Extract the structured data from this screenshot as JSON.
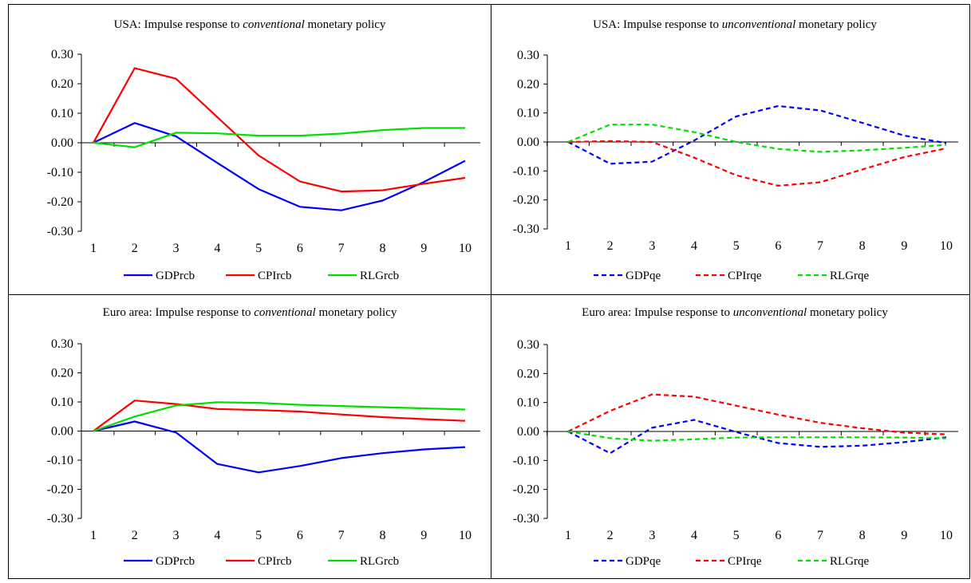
{
  "colors": {
    "GDP": "#0000ff",
    "CPI": "#ff0000",
    "RLG": "#00e000"
  },
  "chart_data": [
    {
      "type": "line",
      "title": {
        "prefix": "USA:  Impulse response to ",
        "emph": "conventional",
        "suffix": " monetary policy"
      },
      "x": [
        1,
        2,
        3,
        4,
        5,
        6,
        7,
        8,
        9,
        10
      ],
      "ylim": [
        -0.3,
        0.3
      ],
      "yticks": [
        "0.30",
        "0.20",
        "0.10",
        "0.00",
        "-0.10",
        "-0.20",
        "-0.30"
      ],
      "dashed": false,
      "series": [
        {
          "name": "GDPrcb",
          "color_key": "GDP",
          "values": [
            0.0,
            0.067,
            0.022,
            -0.068,
            -0.157,
            -0.217,
            -0.229,
            -0.196,
            -0.133,
            -0.061
          ]
        },
        {
          "name": "CPIrcb",
          "color_key": "CPI",
          "values": [
            0.0,
            0.253,
            0.217,
            0.087,
            -0.043,
            -0.131,
            -0.165,
            -0.161,
            -0.139,
            -0.119
          ]
        },
        {
          "name": "RLGrcb",
          "color_key": "RLG",
          "values": [
            0.0,
            -0.015,
            0.034,
            0.032,
            0.024,
            0.024,
            0.031,
            0.043,
            0.05,
            0.05
          ]
        }
      ]
    },
    {
      "type": "line",
      "title": {
        "prefix": "USA:  Impulse response to ",
        "emph": "unconventional",
        "suffix": " monetary policy"
      },
      "x": [
        1,
        2,
        3,
        4,
        5,
        6,
        7,
        8,
        9,
        10
      ],
      "ylim": [
        -0.3,
        0.3
      ],
      "yticks": [
        "0.30",
        "0.20",
        "0.10",
        "0.00",
        "-0.10",
        "-0.20",
        "-0.30"
      ],
      "dashed": true,
      "series": [
        {
          "name": "GDPqe",
          "color_key": "GDP",
          "values": [
            0.0,
            -0.075,
            -0.068,
            0.005,
            0.088,
            0.124,
            0.109,
            0.066,
            0.022,
            -0.004
          ]
        },
        {
          "name": "CPIrqe",
          "color_key": "CPI",
          "values": [
            0.0,
            0.003,
            0.0,
            -0.054,
            -0.115,
            -0.151,
            -0.139,
            -0.095,
            -0.052,
            -0.022
          ]
        },
        {
          "name": "RLGrqe",
          "color_key": "RLG",
          "values": [
            0.0,
            0.06,
            0.06,
            0.034,
            0.0,
            -0.024,
            -0.034,
            -0.029,
            -0.02,
            -0.01
          ]
        }
      ]
    },
    {
      "type": "line",
      "title": {
        "prefix": "Euro area:  Impulse response to ",
        "emph": "conventional",
        "suffix": " monetary policy"
      },
      "x": [
        1,
        2,
        3,
        4,
        5,
        6,
        7,
        8,
        9,
        10
      ],
      "ylim": [
        -0.3,
        0.3
      ],
      "yticks": [
        "0.30",
        "0.20",
        "0.10",
        "0.00",
        "-0.10",
        "-0.20",
        "-0.30"
      ],
      "dashed": false,
      "series": [
        {
          "name": "GDPrcb",
          "color_key": "GDP",
          "values": [
            0.0,
            0.033,
            -0.005,
            -0.113,
            -0.142,
            -0.12,
            -0.093,
            -0.076,
            -0.063,
            -0.055
          ]
        },
        {
          "name": "CPIrcb",
          "color_key": "CPI",
          "values": [
            0.0,
            0.105,
            0.093,
            0.076,
            0.072,
            0.067,
            0.057,
            0.048,
            0.041,
            0.035
          ]
        },
        {
          "name": "RLGrcb",
          "color_key": "RLG",
          "values": [
            0.0,
            0.05,
            0.088,
            0.099,
            0.097,
            0.09,
            0.086,
            0.082,
            0.078,
            0.074
          ]
        }
      ]
    },
    {
      "type": "line",
      "title": {
        "prefix": "Euro area:  Impulse response to ",
        "emph": "unconventional",
        "suffix": " monetary policy"
      },
      "x": [
        1,
        2,
        3,
        4,
        5,
        6,
        7,
        8,
        9,
        10
      ],
      "ylim": [
        -0.3,
        0.3
      ],
      "yticks": [
        "0.30",
        "0.20",
        "0.10",
        "0.00",
        "-0.10",
        "-0.20",
        "-0.30"
      ],
      "dashed": true,
      "series": [
        {
          "name": "GDPqe",
          "color_key": "GDP",
          "values": [
            0.0,
            -0.075,
            0.013,
            0.04,
            -0.002,
            -0.04,
            -0.053,
            -0.049,
            -0.037,
            -0.02
          ]
        },
        {
          "name": "CPIrqe",
          "color_key": "CPI",
          "values": [
            0.0,
            0.071,
            0.128,
            0.12,
            0.089,
            0.058,
            0.03,
            0.011,
            -0.004,
            -0.01
          ]
        },
        {
          "name": "RLGrqe",
          "color_key": "RLG",
          "values": [
            0.0,
            -0.023,
            -0.032,
            -0.027,
            -0.021,
            -0.02,
            -0.02,
            -0.02,
            -0.021,
            -0.024
          ]
        }
      ]
    }
  ]
}
